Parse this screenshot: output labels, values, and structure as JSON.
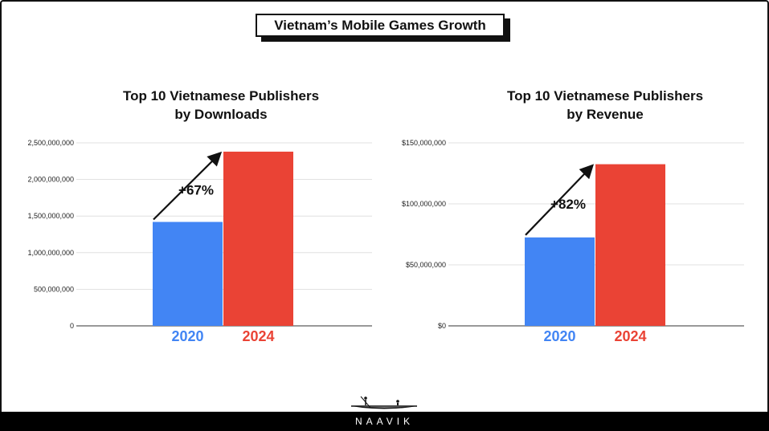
{
  "title": "Vietnam’s Mobile Games Growth",
  "footer": {
    "brand": "NAAVIK"
  },
  "colors": {
    "blue": "#4285F4",
    "red": "#EA4335",
    "grid": "#d9d9d9",
    "axis": "#333333"
  },
  "chart_data": [
    {
      "type": "bar",
      "title_lines": [
        "Top 10 Vietnamese Publishers",
        "by Downloads"
      ],
      "categories": [
        "2020",
        "2024"
      ],
      "values": [
        1420000000,
        2380000000
      ],
      "colors": [
        "#4285F4",
        "#EA4335"
      ],
      "yticks": [
        "0",
        "500,000,000",
        "1,000,000,000",
        "1,500,000,000",
        "2,000,000,000",
        "2,500,000,000"
      ],
      "ytick_values": [
        0,
        500000000,
        1000000000,
        1500000000,
        2000000000,
        2500000000
      ],
      "ylim": [
        0,
        2500000000
      ],
      "annotation": "+67%",
      "grid": true
    },
    {
      "type": "bar",
      "title_lines": [
        "Top 10 Vietnamese Publishers",
        "by Revenue"
      ],
      "categories": [
        "2020",
        "2024"
      ],
      "values": [
        72500000,
        132500000
      ],
      "colors": [
        "#4285F4",
        "#EA4335"
      ],
      "yticks": [
        "$0",
        "$50,000,000",
        "$100,000,000",
        "$150,000,000"
      ],
      "ytick_values": [
        0,
        50000000,
        100000000,
        150000000
      ],
      "ylim": [
        0,
        150000000
      ],
      "annotation": "+82%",
      "grid": true
    }
  ]
}
